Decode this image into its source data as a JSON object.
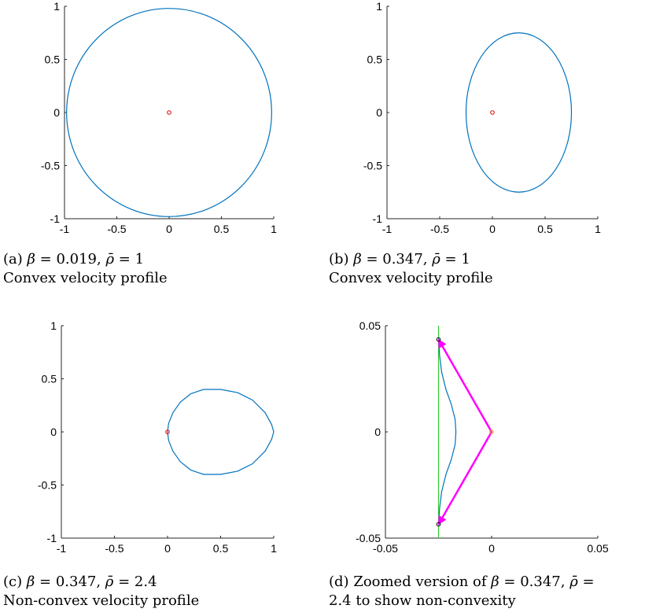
{
  "chart_data": [
    {
      "id": "a",
      "type": "line",
      "xlim": [
        -1,
        1
      ],
      "ylim": [
        -1,
        1
      ],
      "xticks": [
        "-1",
        "-0.5",
        "0",
        "0.5",
        "1"
      ],
      "yticks": [
        "-1",
        "-0.5",
        "0",
        "0.5",
        "1"
      ],
      "grid": false,
      "series": [
        {
          "kind": "ellipse",
          "color": "#0072BD",
          "center": [
            0,
            0
          ],
          "rx": 0.98,
          "ry": 0.98
        },
        {
          "kind": "marker",
          "color": "#E00000",
          "points": [
            [
              0,
              0
            ]
          ]
        }
      ],
      "caption": {
        "label": "(a)",
        "beta_value": "0.019",
        "rho_value": "1",
        "description": "Convex velocity profile"
      }
    },
    {
      "id": "b",
      "type": "line",
      "xlim": [
        -1,
        1
      ],
      "ylim": [
        -1,
        1
      ],
      "xticks": [
        "-1",
        "-0.5",
        "0",
        "0.5",
        "1"
      ],
      "yticks": [
        "-1",
        "-0.5",
        "0",
        "0.5",
        "1"
      ],
      "grid": false,
      "series": [
        {
          "kind": "ellipse",
          "color": "#0072BD",
          "center": [
            0.25,
            0
          ],
          "rx": 0.5,
          "ry": 0.75
        },
        {
          "kind": "marker",
          "color": "#E00000",
          "points": [
            [
              0,
              0
            ]
          ]
        }
      ],
      "caption": {
        "label": "(b)",
        "beta_value": "0.347",
        "rho_value": "1",
        "description": "Convex velocity profile"
      }
    },
    {
      "id": "c",
      "type": "line",
      "xlim": [
        -1,
        1
      ],
      "ylim": [
        -1,
        1
      ],
      "xticks": [
        "-1",
        "-0.5",
        "0",
        "0.5",
        "1"
      ],
      "yticks": [
        "-1",
        "-0.5",
        "0",
        "0.5",
        "1"
      ],
      "grid": false,
      "series": [
        {
          "kind": "curve",
          "color": "#0072BD",
          "points": [
            [
              0.0,
              0.0
            ],
            [
              0.01,
              0.08
            ],
            [
              0.05,
              0.18
            ],
            [
              0.12,
              0.28
            ],
            [
              0.22,
              0.36
            ],
            [
              0.34,
              0.4
            ],
            [
              0.5,
              0.4
            ],
            [
              0.66,
              0.37
            ],
            [
              0.8,
              0.3
            ],
            [
              0.92,
              0.18
            ],
            [
              0.98,
              0.07
            ],
            [
              1.0,
              0.0
            ],
            [
              0.98,
              -0.07
            ],
            [
              0.92,
              -0.18
            ],
            [
              0.8,
              -0.3
            ],
            [
              0.66,
              -0.37
            ],
            [
              0.5,
              -0.4
            ],
            [
              0.34,
              -0.4
            ],
            [
              0.22,
              -0.36
            ],
            [
              0.12,
              -0.28
            ],
            [
              0.05,
              -0.18
            ],
            [
              0.01,
              -0.08
            ],
            [
              0.0,
              0.0
            ]
          ]
        },
        {
          "kind": "marker",
          "color": "#E00000",
          "points": [
            [
              0,
              0
            ]
          ]
        }
      ],
      "caption": {
        "label": "(c)",
        "beta_value": "0.347",
        "rho_value": "2.4",
        "description": "Non-convex velocity profile"
      }
    },
    {
      "id": "d",
      "type": "line",
      "xlim": [
        -0.05,
        0.05
      ],
      "ylim": [
        -0.05,
        0.05
      ],
      "xticks": [
        "-0.05",
        "0",
        "0.05"
      ],
      "yticks": [
        "-0.05",
        "0",
        "0.05"
      ],
      "grid": false,
      "series": [
        {
          "kind": "vline",
          "color": "#33CC33",
          "x": -0.025
        },
        {
          "kind": "curve",
          "color": "#0072BD",
          "points": [
            [
              -0.025,
              0.044
            ],
            [
              -0.0245,
              0.036
            ],
            [
              -0.0235,
              0.028
            ],
            [
              -0.0215,
              0.02
            ],
            [
              -0.019,
              0.013
            ],
            [
              -0.0172,
              0.006
            ],
            [
              -0.0168,
              0.0
            ],
            [
              -0.0172,
              -0.006
            ],
            [
              -0.019,
              -0.013
            ],
            [
              -0.0215,
              -0.02
            ],
            [
              -0.0235,
              -0.028
            ],
            [
              -0.0245,
              -0.036
            ],
            [
              -0.025,
              -0.044
            ]
          ]
        },
        {
          "kind": "arrow",
          "color": "#FF00FF",
          "from": [
            0,
            0
          ],
          "to": [
            -0.025,
            0.0435
          ]
        },
        {
          "kind": "arrow",
          "color": "#FF00FF",
          "from": [
            0,
            0
          ],
          "to": [
            -0.025,
            -0.0435
          ]
        },
        {
          "kind": "marker",
          "color": "#E0B000",
          "points": [
            [
              0,
              0
            ]
          ]
        },
        {
          "kind": "marker",
          "color": "#000000",
          "points": [
            [
              -0.025,
              0.0435
            ],
            [
              -0.025,
              -0.0435
            ]
          ]
        }
      ],
      "caption": {
        "label": "(d)",
        "prefix": "Zoomed version of",
        "beta_value": "0.347",
        "rho_value": "2.4",
        "line2_suffix": "to show non-convexity"
      }
    }
  ]
}
